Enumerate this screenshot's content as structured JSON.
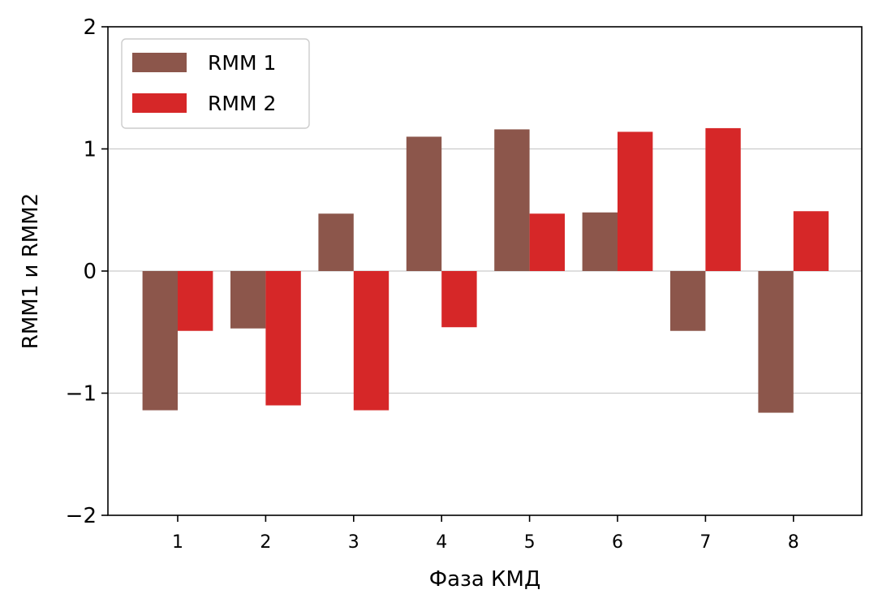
{
  "chart_data": {
    "type": "bar",
    "categories": [
      "1",
      "2",
      "3",
      "4",
      "5",
      "6",
      "7",
      "8"
    ],
    "series": [
      {
        "name": "RMM 1",
        "color": "#8c564b",
        "values": [
          -1.14,
          -0.47,
          0.47,
          1.1,
          1.16,
          0.48,
          -0.49,
          -1.16
        ]
      },
      {
        "name": "RMM 2",
        "color": "#d62728",
        "values": [
          -0.49,
          -1.1,
          -1.14,
          -0.46,
          0.47,
          1.14,
          1.17,
          0.49
        ]
      }
    ],
    "title": "",
    "xlabel": "Фаза КМД",
    "ylabel": "RMM1 и RMM2",
    "ylim": [
      -2,
      2
    ],
    "yticks": [
      -2,
      -1,
      0,
      1,
      2
    ],
    "ytick_labels": [
      "−2",
      "−1",
      "0",
      "1",
      "2"
    ],
    "grid": "horizontal",
    "legend_position": "top-left"
  }
}
